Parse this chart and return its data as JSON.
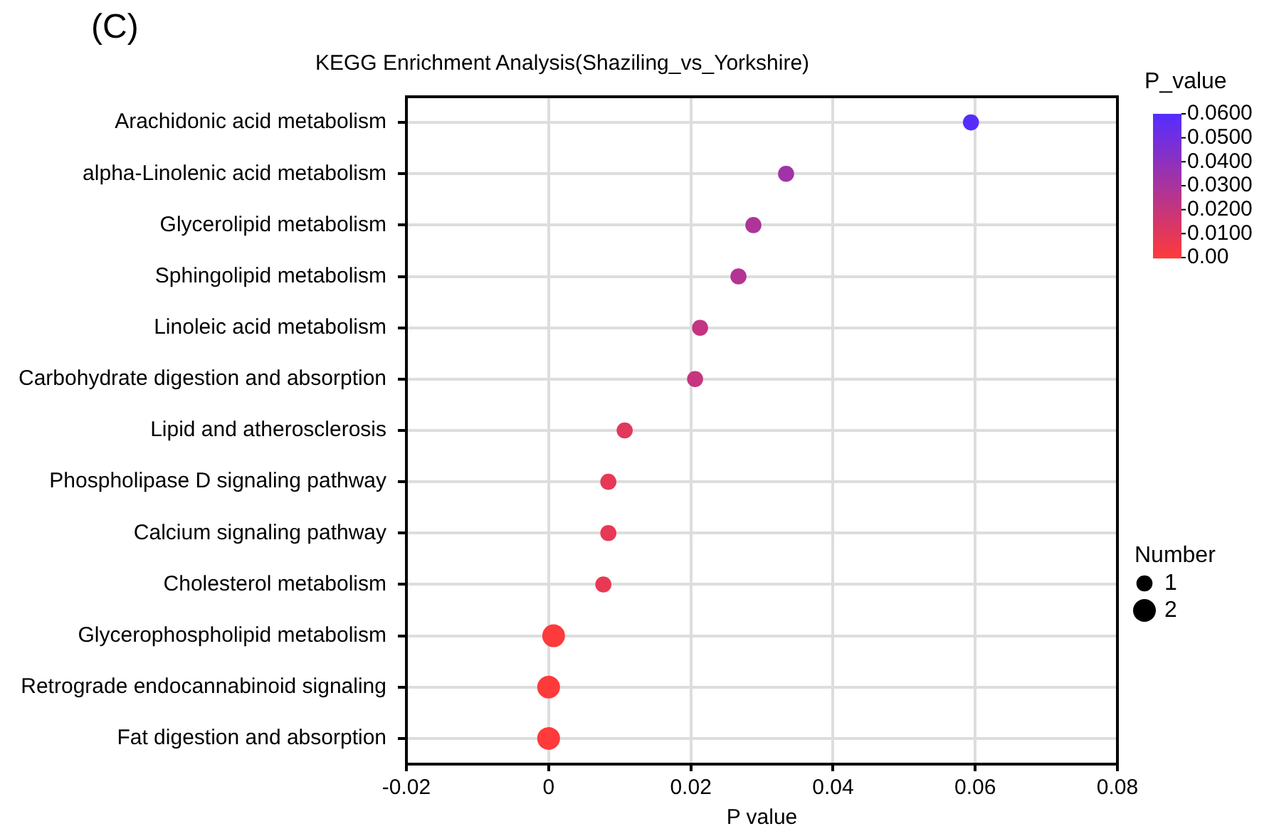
{
  "chart_data": {
    "type": "bubble",
    "orientation": "horizontal",
    "title": "KEGG Enrichment Analysis(Shaziling_vs_Yorkshire)",
    "xlabel": "P value",
    "clabel": "P_value",
    "legend_title": "Number",
    "annotations": [
      "(C)"
    ],
    "categories": [
      "Arachidonic acid metabolism",
      "alpha-Linolenic acid metabolism",
      "Glycerolipid metabolism",
      "Sphingolipid metabolism",
      "Linoleic acid metabolism",
      "Carbohydrate digestion and absorption",
      "Lipid and atherosclerosis",
      "Phospholipase D signaling pathway",
      "Calcium signaling pathway",
      "Cholesterol metabolism",
      "Glycerophospholipid metabolism",
      "Retrograde endocannabinoid signaling",
      "Fat digestion and absorption"
    ],
    "values": [
      0.0594,
      0.0334,
      0.0288,
      0.0267,
      0.0213,
      0.0206,
      0.0107,
      0.0084,
      0.0084,
      0.0077,
      0.0007,
      0.0,
      0.0
    ],
    "cvalues": [
      0.0594,
      0.0334,
      0.0288,
      0.0267,
      0.0213,
      0.0206,
      0.0107,
      0.0084,
      0.0084,
      0.0077,
      0.0007,
      0.0,
      0.0
    ],
    "sizes": [
      1,
      1,
      1,
      1,
      1,
      1,
      1,
      1,
      1,
      1,
      2,
      2,
      2
    ],
    "size_legend": [
      1,
      2
    ],
    "xlim": [
      -0.02,
      0.08
    ],
    "xticks": [
      -0.02,
      0,
      0.02,
      0.04,
      0.06,
      0.08
    ],
    "clim": [
      0,
      0.06
    ],
    "cticks": [
      {
        "value": 0,
        "label": "0.00"
      },
      {
        "value": 0.01,
        "label": "0.0100"
      },
      {
        "value": 0.02,
        "label": "0.0200"
      },
      {
        "value": 0.03,
        "label": "0.0300"
      },
      {
        "value": 0.04,
        "label": "0.0400"
      },
      {
        "value": 0.05,
        "label": "0.0500"
      },
      {
        "value": 0.06,
        "label": "0.0600"
      }
    ],
    "grid": true
  }
}
